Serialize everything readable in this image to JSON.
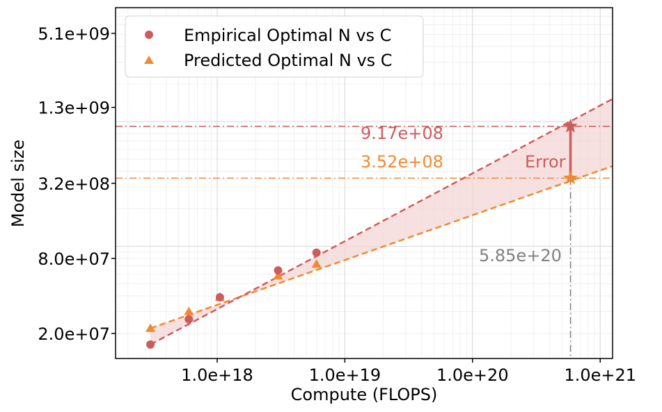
{
  "chart_data": {
    "type": "scatter",
    "scale": {
      "x": "log",
      "y": "log"
    },
    "xlabel": "Compute (FLOPS)",
    "ylabel": "Model size",
    "xlim": [
      1.6e+17,
      1.25e+21
    ],
    "ylim": [
      12600000.0,
      8200000000.0
    ],
    "grid": true,
    "legend_position": "top-left",
    "x_ticks": [
      {
        "value": 1e+18,
        "label": "1.0e+18"
      },
      {
        "value": 1e+19,
        "label": "1.0e+19"
      },
      {
        "value": 1e+20,
        "label": "1.0e+20"
      },
      {
        "value": 1e+21,
        "label": "1.0e+21"
      }
    ],
    "y_ticks": [
      {
        "value": 20000000.0,
        "label": "2.0e+07"
      },
      {
        "value": 80000000.0,
        "label": "8.0e+07"
      },
      {
        "value": 320000000.0,
        "label": "3.2e+08"
      },
      {
        "value": 1300000000.0,
        "label": "1.3e+09"
      },
      {
        "value": 5100000000.0,
        "label": "5.1e+09"
      }
    ],
    "series": [
      {
        "name": "Empirical Optimal N vs C",
        "marker": "circle",
        "color": "#cd5c5c",
        "x": [
          3e+17,
          6e+17,
          1.05e+18,
          3e+18,
          6e+18
        ],
        "y": [
          16300000.0,
          26000000.0,
          39000000.0,
          64000000.0,
          89000000.0
        ],
        "fit_line": {
          "x": [
            3e+17,
            1.25e+21
          ],
          "y": [
            16300000.0,
            1520000000.0
          ]
        },
        "target_value": 917000000.0,
        "target_label": "9.17e+08"
      },
      {
        "name": "Predicted Optimal N vs C",
        "marker": "triangle",
        "color": "#f08a30",
        "x": [
          3e+17,
          6e+17,
          1.05e+18,
          3e+18,
          6e+18
        ],
        "y": [
          22000000.0,
          30000000.0,
          39000000.0,
          58000000.0,
          72000000.0
        ],
        "fit_line": {
          "x": [
            3e+17,
            1.25e+21
          ],
          "y": [
            22000000.0,
            440000000.0
          ]
        },
        "target_value": 352000000.0,
        "target_label": "3.52e+08"
      }
    ],
    "target_compute": 5.85e+20,
    "target_compute_label": "5.85e+20",
    "error_label": "Error",
    "colors": {
      "empirical": "#cd5c5c",
      "predicted": "#f08a30",
      "target_line": "#808080",
      "band": "#f3d6d6"
    }
  }
}
